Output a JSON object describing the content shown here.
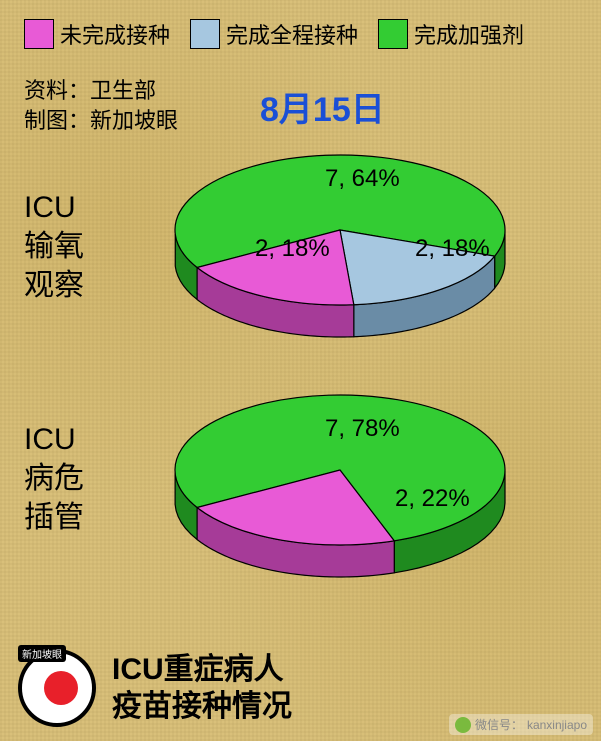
{
  "legend": {
    "items": [
      {
        "label": "未完成接种",
        "color": "#e85ad6"
      },
      {
        "label": "完成全程接种",
        "color": "#a6c7e0"
      },
      {
        "label": "完成加强剂",
        "color": "#33cc33"
      }
    ]
  },
  "meta": {
    "source_label": "资料：",
    "source_value": "卫生部",
    "graphic_label": "制图：",
    "graphic_value": "新加坡眼"
  },
  "date": "8月15日",
  "chart1": {
    "label_line1": "ICU",
    "label_line2": "输氧",
    "label_line3": "观察",
    "slices": [
      {
        "label": "7, 64%",
        "value": 64,
        "color": "#33cc33",
        "side": "#1f8a1f"
      },
      {
        "label": "2, 18%",
        "value": 18,
        "color": "#a6c7e0",
        "side": "#6a8ca6"
      },
      {
        "label": "2, 18%",
        "value": 18,
        "color": "#e85ad6",
        "side": "#a63b98"
      }
    ]
  },
  "chart2": {
    "label_line1": "ICU",
    "label_line2": "病危",
    "label_line3": "插管",
    "slices": [
      {
        "label": "7, 78%",
        "value": 78,
        "color": "#33cc33",
        "side": "#1f8a1f"
      },
      {
        "label": "2, 22%",
        "value": 22,
        "color": "#e85ad6",
        "side": "#a63b98"
      }
    ]
  },
  "footer": {
    "title_line1": "ICU重症病人",
    "title_line2": "疫苗接种情况",
    "logo_tag": "新加坡眼"
  },
  "watermark": {
    "label": "微信号：",
    "value": "kanxinjiapo"
  },
  "style": {
    "pie_rx": 165,
    "pie_ry": 75,
    "pie_depth": 32,
    "stroke": "#000000",
    "stroke_width": 1.2,
    "label_fontsize": 24
  }
}
